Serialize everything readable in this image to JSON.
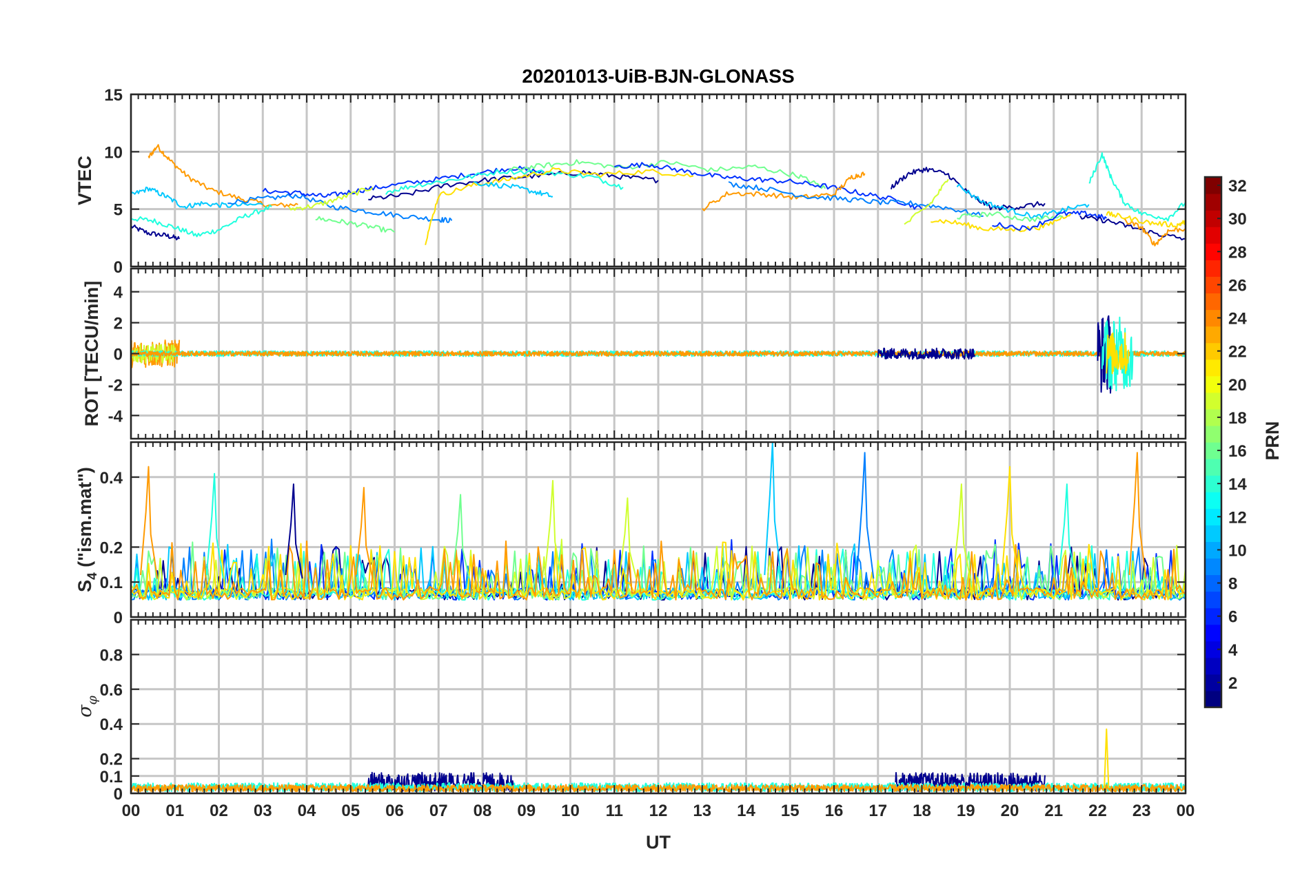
{
  "chart_data": {
    "type": "line",
    "title": "20201013-UiB-BJN-GLONASS",
    "xlabel": "UT",
    "x_range_hours": [
      0,
      24
    ],
    "x_ticks": [
      "00",
      "01",
      "02",
      "03",
      "04",
      "05",
      "06",
      "07",
      "08",
      "09",
      "10",
      "11",
      "12",
      "13",
      "14",
      "15",
      "16",
      "17",
      "18",
      "19",
      "20",
      "21",
      "22",
      "23",
      "00"
    ],
    "grid": true,
    "colorbar": {
      "label": "PRN",
      "range": [
        1,
        32
      ],
      "ticks": [
        "2",
        "4",
        "6",
        "8",
        "10",
        "12",
        "14",
        "16",
        "18",
        "20",
        "22",
        "24",
        "26",
        "28",
        "30",
        "32"
      ],
      "colormap": "jet",
      "placement": "right"
    },
    "series_colors": {
      "prn_2": "#00008f",
      "prn_5": "#0030ff",
      "prn_8": "#0080ff",
      "prn_11": "#00c8ff",
      "prn_13": "#20ffdf",
      "prn_16": "#70ff8f",
      "prn_19": "#d0ff2f",
      "prn_21": "#ffe000",
      "prn_23": "#ff9a00"
    },
    "panels": [
      {
        "id": "vtec",
        "ylabel": "VTEC",
        "ylim": [
          0,
          15
        ],
        "yticks": [
          "0",
          "5",
          "10",
          "15"
        ],
        "series": [
          {
            "color_key": "prn_2",
            "x": [
              0.0,
              0.4,
              0.8,
              1.1
            ],
            "y": [
              3.5,
              2.9,
              2.7,
              2.4
            ]
          },
          {
            "color_key": "prn_23",
            "x": [
              0.4,
              0.6,
              0.9,
              1.3,
              1.8,
              2.5,
              3.2,
              3.8
            ],
            "y": [
              9.5,
              10.5,
              9.2,
              7.8,
              6.7,
              5.9,
              5.3,
              5.4
            ]
          },
          {
            "color_key": "prn_13",
            "x": [
              0.0,
              0.5,
              1.0,
              1.5,
              2.0,
              2.6,
              3.2
            ],
            "y": [
              4.2,
              4.0,
              3.4,
              2.7,
              3.2,
              4.4,
              5.2
            ]
          },
          {
            "color_key": "prn_11",
            "x": [
              0.0,
              0.4,
              0.8,
              1.2,
              1.6,
              2.2,
              3.0
            ],
            "y": [
              6.2,
              6.8,
              6.1,
              5.2,
              5.5,
              5.3,
              5.4
            ]
          },
          {
            "color_key": "prn_8",
            "x": [
              2.2,
              3.0,
              3.8,
              4.6,
              5.4,
              6.2,
              7.0,
              7.3
            ],
            "y": [
              5.6,
              5.9,
              6.2,
              5.2,
              4.8,
              4.4,
              4.1,
              4.0
            ]
          },
          {
            "color_key": "prn_5",
            "x": [
              3.0,
              3.8,
              4.4,
              5.0,
              5.8,
              6.8,
              7.8,
              8.7,
              9.4
            ],
            "y": [
              6.6,
              6.4,
              6.1,
              6.5,
              7.0,
              7.5,
              8.1,
              8.6,
              8.2
            ]
          },
          {
            "color_key": "prn_19",
            "x": [
              3.6,
              4.2,
              4.8,
              5.5
            ],
            "y": [
              5.0,
              5.3,
              6.0,
              6.9
            ]
          },
          {
            "color_key": "prn_16",
            "x": [
              4.2,
              4.8,
              5.4,
              6.0
            ],
            "y": [
              4.2,
              3.9,
              3.5,
              3.0
            ]
          },
          {
            "color_key": "prn_2",
            "x": [
              5.4,
              6.2,
              7.2,
              8.2,
              9.2,
              10.3,
              11.2,
              12.0
            ],
            "y": [
              5.9,
              6.2,
              7.1,
              7.6,
              7.9,
              8.2,
              7.8,
              7.5
            ]
          },
          {
            "color_key": "prn_13",
            "x": [
              5.8,
              6.5,
              7.4,
              8.4,
              9.5,
              10.5,
              11.2
            ],
            "y": [
              6.5,
              7.1,
              7.6,
              8.3,
              8.2,
              7.8,
              6.9
            ]
          },
          {
            "color_key": "prn_21",
            "x": [
              6.7,
              7.0,
              7.8,
              8.6,
              9.6,
              10.6,
              11.8,
              12.8
            ],
            "y": [
              2.1,
              6.2,
              7.1,
              7.6,
              8.4,
              8.0,
              8.3,
              7.9
            ]
          },
          {
            "color_key": "prn_11",
            "x": [
              7.8,
              8.6,
              9.2,
              9.6
            ],
            "y": [
              7.3,
              7.0,
              6.5,
              6.1
            ]
          },
          {
            "color_key": "prn_16",
            "x": [
              8.6,
              9.4,
              10.2,
              11.2,
              12.2,
              13.2,
              14.2,
              15.2,
              15.8
            ],
            "y": [
              8.4,
              8.8,
              9.1,
              8.6,
              9.1,
              8.4,
              8.7,
              7.9,
              6.8
            ]
          },
          {
            "color_key": "prn_5",
            "x": [
              11.0,
              11.8,
              12.6,
              13.4,
              14.2,
              15.0,
              15.8,
              16.6,
              17.4,
              18.0
            ],
            "y": [
              8.7,
              8.9,
              8.3,
              7.8,
              7.6,
              7.4,
              7.0,
              6.4,
              5.8,
              5.0
            ]
          },
          {
            "color_key": "prn_23",
            "x": [
              13.0,
              13.6,
              14.4,
              15.2,
              16.0,
              16.4,
              16.7
            ],
            "y": [
              5.0,
              6.4,
              6.3,
              6.0,
              6.3,
              7.8,
              8.1
            ]
          },
          {
            "color_key": "prn_8",
            "x": [
              13.6,
              14.4,
              15.4,
              16.2,
              17.0,
              17.8,
              18.6,
              19.4
            ],
            "y": [
              7.2,
              6.8,
              6.1,
              5.9,
              5.6,
              5.5,
              5.1,
              4.4
            ]
          },
          {
            "color_key": "prn_2",
            "x": [
              17.3,
              17.7,
              18.1,
              18.6,
              19.1,
              19.6,
              20.2,
              20.8
            ],
            "y": [
              6.9,
              8.1,
              8.5,
              8.0,
              6.2,
              5.1,
              5.2,
              5.5
            ]
          },
          {
            "color_key": "prn_19",
            "x": [
              17.6,
              18.2,
              18.6
            ],
            "y": [
              3.6,
              5.5,
              7.6
            ]
          },
          {
            "color_key": "prn_21",
            "x": [
              18.2,
              18.8,
              19.4,
              20.2,
              20.8,
              21.4
            ],
            "y": [
              4.1,
              3.8,
              3.3,
              3.2,
              3.5,
              4.7
            ]
          },
          {
            "color_key": "prn_11",
            "x": [
              18.8,
              19.4,
              20.0,
              20.6,
              21.2,
              21.8
            ],
            "y": [
              7.1,
              5.6,
              4.9,
              4.3,
              4.9,
              5.4
            ]
          },
          {
            "color_key": "prn_16",
            "x": [
              18.8,
              19.6,
              20.4,
              21.2
            ],
            "y": [
              4.3,
              4.6,
              4.1,
              4.3
            ]
          },
          {
            "color_key": "prn_5",
            "x": [
              19.6,
              20.4,
              21.2,
              21.8,
              22.2
            ],
            "y": [
              3.7,
              3.3,
              4.6,
              4.6,
              4.2
            ]
          },
          {
            "color_key": "prn_13",
            "x": [
              21.8,
              22.1,
              22.3,
              22.6,
              23.0,
              23.6,
              24.0
            ],
            "y": [
              7.2,
              9.8,
              7.8,
              5.6,
              4.6,
              4.2,
              5.6
            ]
          },
          {
            "color_key": "prn_2",
            "x": [
              21.6,
              22.2,
              22.8,
              23.4,
              24.0
            ],
            "y": [
              4.3,
              4.0,
              3.4,
              2.8,
              2.4
            ]
          },
          {
            "color_key": "prn_23",
            "x": [
              22.6,
              23.0,
              23.3,
              23.6,
              24.0
            ],
            "y": [
              4.0,
              3.4,
              1.9,
              3.1,
              3.3
            ]
          },
          {
            "color_key": "prn_21",
            "x": [
              22.2,
              22.6,
              23.2,
              23.8,
              24.0
            ],
            "y": [
              4.6,
              4.3,
              3.8,
              3.6,
              3.9
            ]
          }
        ]
      },
      {
        "id": "rot",
        "ylabel": "ROT [TECU/min]",
        "ylim": [
          -5.5,
          5.5
        ],
        "yticks": [
          "-4",
          "-2",
          "0",
          "2",
          "4"
        ],
        "baseline": 0,
        "bursts": [
          {
            "color_key": "prn_23",
            "x_range": [
              0.0,
              1.1
            ],
            "amplitude": 0.9
          },
          {
            "color_key": "prn_19",
            "x_range": [
              0.0,
              1.0
            ],
            "amplitude": 0.6
          },
          {
            "color_key": "prn_13",
            "x_range": [
              0.0,
              24.0
            ],
            "amplitude": 0.18
          },
          {
            "color_key": "prn_23",
            "x_range": [
              0.0,
              24.0
            ],
            "amplitude": 0.15
          },
          {
            "color_key": "prn_2",
            "x_range": [
              17.0,
              19.2
            ],
            "amplitude": 0.35
          },
          {
            "color_key": "prn_2",
            "x_range": [
              22.0,
              22.3
            ],
            "amplitude": 2.6
          },
          {
            "color_key": "prn_13",
            "x_range": [
              22.1,
              22.8
            ],
            "amplitude": 2.4
          },
          {
            "color_key": "prn_21",
            "x_range": [
              22.2,
              22.7
            ],
            "amplitude": 1.4
          }
        ]
      },
      {
        "id": "s4",
        "ylabel": "S4 (\"ism.mat\")",
        "ylabel_main": "S",
        "ylabel_sub": "4",
        "ylabel_rest": " (\"ism.mat\")",
        "ylim": [
          0,
          0.5
        ],
        "yticks": [
          "0",
          "0.1",
          "0.2",
          "0.4"
        ],
        "spikes": [
          {
            "color_key": "prn_23",
            "x": 0.4,
            "peak": 0.43
          },
          {
            "color_key": "prn_13",
            "x": 1.9,
            "peak": 0.41
          },
          {
            "color_key": "prn_2",
            "x": 3.7,
            "peak": 0.38
          },
          {
            "color_key": "prn_23",
            "x": 5.3,
            "peak": 0.37
          },
          {
            "color_key": "prn_16",
            "x": 7.5,
            "peak": 0.35
          },
          {
            "color_key": "prn_19",
            "x": 9.6,
            "peak": 0.39
          },
          {
            "color_key": "prn_19",
            "x": 11.3,
            "peak": 0.34
          },
          {
            "color_key": "prn_11",
            "x": 14.6,
            "peak": 0.5
          },
          {
            "color_key": "prn_8",
            "x": 16.7,
            "peak": 0.47
          },
          {
            "color_key": "prn_19",
            "x": 18.9,
            "peak": 0.38
          },
          {
            "color_key": "prn_21",
            "x": 20.0,
            "peak": 0.43
          },
          {
            "color_key": "prn_13",
            "x": 21.3,
            "peak": 0.38
          },
          {
            "color_key": "prn_23",
            "x": 22.9,
            "peak": 0.47
          }
        ],
        "noise": {
          "baseline": 0.07,
          "amplitude": 0.14
        }
      },
      {
        "id": "sigma_phi",
        "ylabel": "σφ",
        "ylabel_main": "σ",
        "ylabel_sub": "φ",
        "ylim": [
          0,
          1.0
        ],
        "yticks": [
          "0",
          "0.1",
          "0.2",
          "0.4",
          "0.6",
          "0.8"
        ],
        "noise": [
          {
            "color_key": "prn_2",
            "x_range": [
              5.4,
              8.7
            ],
            "level": 0.11
          },
          {
            "color_key": "prn_2",
            "x_range": [
              17.4,
              20.8
            ],
            "level": 0.11
          },
          {
            "color_key": "prn_13",
            "x_range": [
              0.0,
              24.0
            ],
            "level": 0.05
          },
          {
            "color_key": "prn_23",
            "x_range": [
              0.0,
              24.0
            ],
            "level": 0.04
          }
        ],
        "spikes": [
          {
            "color_key": "prn_21",
            "x": 22.2,
            "peak": 0.37
          }
        ]
      }
    ]
  }
}
